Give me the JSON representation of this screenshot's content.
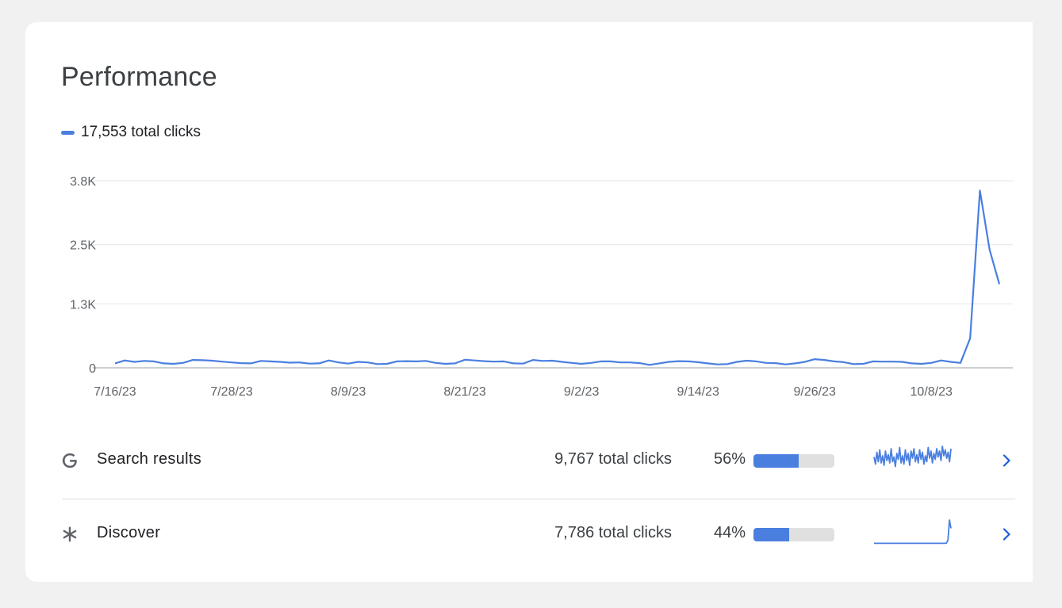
{
  "page": {
    "title": "Performance"
  },
  "legend": {
    "label": "17,553 total clicks",
    "color": "#4a7fe0"
  },
  "colors": {
    "line": "#4a7fe0",
    "grid": "#e6e6e6",
    "axis": "#9aa0a6",
    "bar_fill": "#4a7fe0",
    "bar_track": "#e0e0e0",
    "chevron": "#1a5dd6",
    "icon": "#5f6368"
  },
  "chart_data": {
    "type": "line",
    "y_ticks": [
      "3.8K",
      "2.5K",
      "1.3K",
      "0"
    ],
    "y_tick_values": [
      3800,
      2500,
      1300,
      0
    ],
    "ylim": [
      0,
      3800
    ],
    "x_tick_labels": [
      "7/16/23",
      "7/28/23",
      "8/9/23",
      "8/21/23",
      "9/2/23",
      "9/14/23",
      "9/26/23",
      "10/8/23"
    ],
    "x_start": "7/16/23",
    "x_end": "10/15/23",
    "grid": true,
    "series": [
      {
        "values": [
          90,
          150,
          120,
          140,
          130,
          90,
          80,
          100,
          160,
          155,
          145,
          125,
          110,
          95,
          90,
          140,
          130,
          120,
          105,
          110,
          85,
          90,
          150,
          110,
          85,
          120,
          110,
          75,
          80,
          130,
          135,
          130,
          140,
          100,
          80,
          90,
          165,
          150,
          135,
          125,
          130,
          90,
          85,
          160,
          140,
          145,
          120,
          100,
          80,
          100,
          130,
          130,
          110,
          110,
          95,
          60,
          90,
          120,
          135,
          130,
          115,
          90,
          70,
          75,
          120,
          145,
          130,
          100,
          95,
          70,
          90,
          120,
          175,
          160,
          130,
          115,
          75,
          80,
          130,
          125,
          125,
          120,
          90,
          80,
          100,
          150,
          120,
          100,
          600,
          3600,
          2400,
          1700
        ]
      }
    ]
  },
  "rows": [
    {
      "icon": "google-g-icon",
      "label": "Search results",
      "clicks": "9,767 total clicks",
      "percent_label": "56%",
      "percent": 56,
      "spark": [
        0.55,
        0.25,
        0.75,
        0.35,
        0.85,
        0.3,
        0.6,
        0.2,
        0.8,
        0.4,
        0.65,
        0.3,
        0.9,
        0.35,
        0.55,
        0.15,
        0.7,
        0.45,
        0.95,
        0.3,
        0.6,
        0.25,
        0.85,
        0.4,
        0.7,
        0.2,
        0.8,
        0.5,
        0.9,
        0.35,
        0.65,
        0.3,
        0.85,
        0.45,
        0.75,
        0.25,
        0.6,
        0.35,
        0.95,
        0.5,
        0.8,
        0.3,
        0.7,
        0.45,
        0.9,
        0.55,
        0.8,
        0.4,
        1.0,
        0.6,
        0.85,
        0.5,
        0.75,
        0.35,
        0.9
      ]
    },
    {
      "icon": "discover-asterisk-icon",
      "label": "Discover",
      "clicks": "7,786 total clicks",
      "percent_label": "44%",
      "percent": 44,
      "spark": [
        0.02,
        0.02,
        0.02,
        0.02,
        0.02,
        0.02,
        0.02,
        0.02,
        0.02,
        0.02,
        0.02,
        0.02,
        0.02,
        0.02,
        0.02,
        0.02,
        0.02,
        0.02,
        0.02,
        0.02,
        0.02,
        0.02,
        0.02,
        0.02,
        0.02,
        0.02,
        0.02,
        0.02,
        0.02,
        0.02,
        0.02,
        0.02,
        0.02,
        0.02,
        0.02,
        0.02,
        0.02,
        0.02,
        0.02,
        0.02,
        0.02,
        0.02,
        0.02,
        0.02,
        0.02,
        0.02,
        0.02,
        0.02,
        0.03,
        0.15,
        1.0,
        0.65
      ]
    }
  ]
}
